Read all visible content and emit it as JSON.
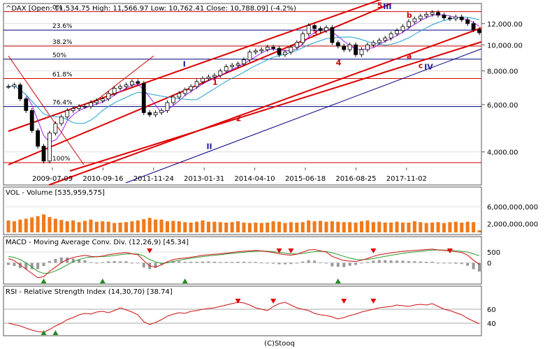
{
  "footer": "(C)Stooq",
  "chart_data": [
    {
      "type": "candlestick",
      "title": "^DAX [Open: 11,534.75  High: 11,566.97  Low: 10,762.41  Close: 10,788.09] (-4.2%)",
      "y_scale": "log",
      "ylim": [
        3500,
        14000
      ],
      "y_ticks": [
        4000,
        6000,
        8000,
        10000,
        12000
      ],
      "y_tick_labels": [
        "4,000.00",
        "6,000.00",
        "8,000.00",
        "10,000.00",
        "12,000.00"
      ],
      "x_tick_labels": [
        "2009-07-09",
        "2010-09-16",
        "2011-11-24",
        "2013-01-31",
        "2014-04-10",
        "2015-06-18",
        "2016-08-25",
        "2017-11-02"
      ],
      "fib_levels": [
        {
          "label": "0%",
          "value": 13300
        },
        {
          "label": "23.6%",
          "value": 11350
        },
        {
          "label": "38.2%",
          "value": 9900
        },
        {
          "label": "50%",
          "value": 8850
        },
        {
          "label": "61.8%",
          "value": 7500
        },
        {
          "label": "76.4%",
          "value": 5900
        },
        {
          "label": "100%",
          "value": 3650
        }
      ],
      "wave_labels": [
        "I",
        "II",
        "III",
        "IV",
        "1",
        "2",
        "3",
        "4",
        "5",
        "a",
        "b",
        "c"
      ],
      "close": [
        7000,
        7100,
        6300,
        5700,
        4800,
        4200,
        3700,
        4700,
        5100,
        5400,
        5700,
        5800,
        5900,
        5900,
        6100,
        6200,
        6300,
        6600,
        6900,
        7000,
        7100,
        7300,
        7200,
        5600,
        5500,
        5600,
        5700,
        6100,
        6400,
        6600,
        6800,
        7000,
        7300,
        7500,
        7600,
        7700,
        8000,
        8300,
        8400,
        8500,
        8800,
        9400,
        9500,
        9600,
        9800,
        9700,
        9200,
        9400,
        9800,
        10200,
        11000,
        11800,
        11500,
        11300,
        11600,
        10200,
        9900,
        9600,
        10000,
        9200,
        9600,
        10000,
        10200,
        10400,
        10600,
        11000,
        11300,
        11700,
        12200,
        12500,
        12800,
        13000,
        13200,
        12900,
        12600,
        12500,
        12700,
        12400,
        12000,
        11400,
        11100
      ]
    },
    {
      "type": "bar",
      "title": "VOL - Volume [535,959,575]",
      "y_ticks": [
        2000000000,
        6000000000
      ],
      "y_tick_labels": [
        "2,000,000,000",
        "6,000,000,000"
      ],
      "values": [
        2.8,
        2.6,
        3.0,
        3.2,
        3.5,
        3.8,
        4.2,
        3.6,
        3.2,
        2.9,
        2.6,
        2.8,
        2.4,
        2.7,
        3.0,
        2.5,
        2.6,
        2.5,
        2.2,
        2.3,
        2.4,
        2.6,
        2.8,
        3.1,
        3.4,
        3.0,
        3.0,
        2.6,
        2.7,
        2.6,
        2.4,
        2.3,
        2.5,
        2.8,
        2.5,
        2.5,
        2.4,
        2.3,
        2.4,
        2.6,
        2.3,
        2.2,
        2.3,
        2.2,
        2.3,
        2.6,
        2.5,
        2.2,
        2.4,
        2.3,
        2.4,
        2.8,
        2.6,
        2.7,
        2.5,
        2.6,
        2.5,
        2.4,
        2.4,
        2.3,
        2.6,
        2.8,
        2.4,
        2.5,
        2.3,
        2.3,
        2.5,
        2.3,
        2.3,
        2.6,
        2.4,
        2.2,
        2.3,
        2.4,
        2.2,
        2.4,
        2.5,
        2.3,
        2.5,
        2.4,
        0.5
      ]
    },
    {
      "type": "line",
      "title": "MACD - Moving Average Conv. Div. (12,26,9) [45.34]",
      "y_ticks": [
        0,
        500
      ],
      "y_tick_labels": [
        "0",
        "500"
      ],
      "macd": [
        200,
        100,
        -100,
        -300,
        -500,
        -700,
        -650,
        -400,
        -200,
        0,
        150,
        250,
        300,
        350,
        300,
        280,
        320,
        380,
        420,
        450,
        480,
        420,
        380,
        100,
        -150,
        -200,
        -100,
        50,
        150,
        200,
        220,
        260,
        300,
        350,
        380,
        400,
        420,
        450,
        480,
        520,
        540,
        560,
        580,
        560,
        520,
        480,
        420,
        380,
        360,
        400,
        500,
        600,
        620,
        560,
        500,
        300,
        200,
        100,
        80,
        60,
        120,
        200,
        300,
        380,
        420,
        460,
        500,
        540,
        560,
        580,
        600,
        620,
        640,
        600,
        580,
        560,
        520,
        480,
        360,
        120,
        -80
      ],
      "signal": [
        300,
        250,
        150,
        0,
        -200,
        -400,
        -500,
        -480,
        -380,
        -250,
        -100,
        50,
        150,
        230,
        270,
        280,
        290,
        310,
        340,
        380,
        410,
        420,
        410,
        320,
        150,
        40,
        -20,
        0,
        60,
        120,
        170,
        210,
        250,
        290,
        320,
        350,
        380,
        410,
        440,
        470,
        490,
        520,
        540,
        550,
        540,
        520,
        490,
        450,
        420,
        410,
        440,
        480,
        520,
        540,
        530,
        470,
        390,
        300,
        220,
        160,
        140,
        160,
        200,
        250,
        300,
        350,
        400,
        440,
        480,
        510,
        540,
        570,
        590,
        600,
        595,
        585,
        565,
        540,
        500,
        420,
        330
      ]
    },
    {
      "type": "line",
      "title": "RSI - Relative Strength Index (14,30,70) [38.74]",
      "y_ticks": [
        40,
        60
      ],
      "y_tick_labels": [
        "40",
        "60"
      ],
      "values": [
        40,
        38,
        36,
        33,
        30,
        28,
        27,
        31,
        36,
        40,
        45,
        48,
        52,
        54,
        53,
        56,
        57,
        55,
        58,
        62,
        59,
        56,
        52,
        42,
        38,
        41,
        45,
        50,
        53,
        55,
        54,
        57,
        58,
        60,
        61,
        62,
        64,
        66,
        68,
        70,
        69,
        66,
        62,
        60,
        58,
        64,
        68,
        70,
        66,
        62,
        60,
        58,
        54,
        52,
        51,
        49,
        46,
        48,
        51,
        53,
        56,
        58,
        60,
        62,
        63,
        64,
        66,
        65,
        64,
        66,
        67,
        66,
        68,
        64,
        60,
        58,
        55,
        52,
        47,
        43,
        39
      ]
    }
  ]
}
